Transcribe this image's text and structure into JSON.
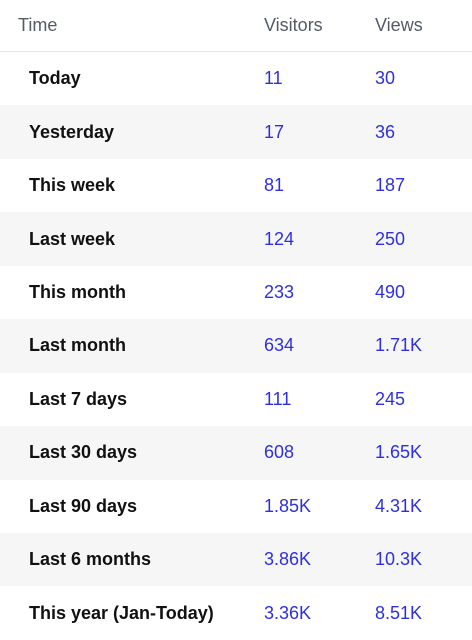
{
  "table": {
    "headers": {
      "time": "Time",
      "visitors": "Visitors",
      "views": "Views"
    },
    "rows": [
      {
        "time": "Today",
        "visitors": "11",
        "views": "30"
      },
      {
        "time": "Yesterday",
        "visitors": "17",
        "views": "36"
      },
      {
        "time": "This week",
        "visitors": "81",
        "views": "187"
      },
      {
        "time": "Last week",
        "visitors": "124",
        "views": "250"
      },
      {
        "time": "This month",
        "visitors": "233",
        "views": "490"
      },
      {
        "time": "Last month",
        "visitors": "634",
        "views": "1.71K"
      },
      {
        "time": "Last 7 days",
        "visitors": "111",
        "views": "245"
      },
      {
        "time": "Last 30 days",
        "visitors": "608",
        "views": "1.65K"
      },
      {
        "time": "Last 90 days",
        "visitors": "1.85K",
        "views": "4.31K"
      },
      {
        "time": "Last 6 months",
        "visitors": "3.86K",
        "views": "10.3K"
      },
      {
        "time": "This year (Jan-Today)",
        "visitors": "3.36K",
        "views": "8.51K"
      }
    ]
  },
  "colors": {
    "value_link": "#2f2fe0",
    "row_stripe": "#f6f6f7",
    "header_text": "#555b66"
  }
}
